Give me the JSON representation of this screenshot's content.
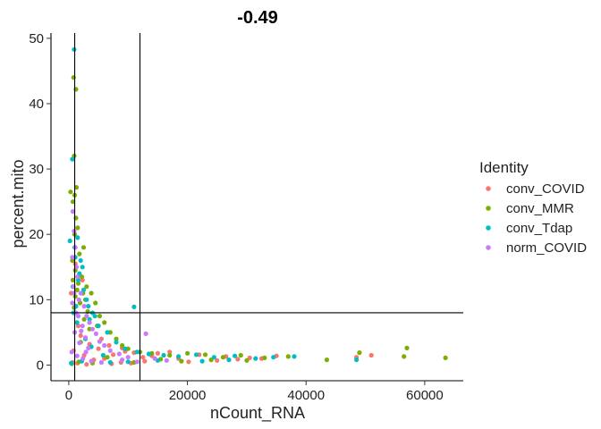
{
  "chart_data": {
    "type": "scatter",
    "title": "-0.49",
    "xlabel": "nCount_RNA",
    "ylabel": "percent.mito",
    "xlim": [
      -3000,
      66500
    ],
    "ylim": [
      -2.4,
      50.8
    ],
    "x_ticks": [
      0,
      20000,
      40000,
      60000
    ],
    "x_tick_labels": [
      "0",
      "20000",
      "40000",
      "60000"
    ],
    "y_ticks": [
      0,
      10,
      20,
      30,
      40,
      50
    ],
    "y_tick_labels": [
      "0",
      "10",
      "20",
      "30",
      "40",
      "50"
    ],
    "grid": false,
    "legend_position": "right",
    "legend_title": "Identity",
    "vlines": [
      1000,
      12000
    ],
    "hlines": [
      8
    ],
    "series": [
      {
        "name": "conv_COVID",
        "color": "#F8766D",
        "points": [
          [
            51000,
            1.5
          ],
          [
            48500,
            1.2
          ],
          [
            35000,
            1.4
          ],
          [
            30500,
            1.1
          ],
          [
            26500,
            1.3
          ],
          [
            22000,
            1.6
          ],
          [
            18500,
            1.0
          ],
          [
            15000,
            1.8
          ],
          [
            12500,
            1.2
          ],
          [
            9500,
            2.1
          ],
          [
            7500,
            1.6
          ],
          [
            6000,
            1.0
          ],
          [
            5000,
            2.5
          ],
          [
            4200,
            0.8
          ],
          [
            3500,
            3.2
          ],
          [
            2600,
            1.5
          ],
          [
            2000,
            4.5
          ],
          [
            1600,
            6.0
          ],
          [
            1200,
            9.0
          ],
          [
            800,
            2.2
          ],
          [
            600,
            0.4
          ],
          [
            400,
            11.0
          ],
          [
            12800,
            0.6
          ],
          [
            10500,
            0.3
          ],
          [
            8800,
            0.4
          ],
          [
            7200,
            0.2
          ],
          [
            3000,
            0.1
          ],
          [
            1500,
            0.3
          ],
          [
            2300,
            13.0
          ],
          [
            1100,
            15.5
          ],
          [
            20200,
            0.5
          ],
          [
            25000,
            0.7
          ],
          [
            28500,
            0.9
          ],
          [
            32500,
            1.0
          ],
          [
            17000,
            2.0
          ],
          [
            14000,
            1.4
          ],
          [
            11000,
            1.9
          ],
          [
            9000,
            2.6
          ],
          [
            6800,
            3.0
          ],
          [
            5500,
            4.0
          ]
        ]
      },
      {
        "name": "conv_MMR",
        "color": "#7CAE00",
        "points": [
          [
            800,
            44.0
          ],
          [
            1200,
            42.2
          ],
          [
            900,
            32.0
          ],
          [
            1300,
            27.2
          ],
          [
            300,
            26.5
          ],
          [
            1000,
            26.0
          ],
          [
            700,
            25.0
          ],
          [
            1500,
            21.0
          ],
          [
            2500,
            18.0
          ],
          [
            1800,
            17.0
          ],
          [
            600,
            16.0
          ],
          [
            1100,
            14.5
          ],
          [
            2200,
            13.5
          ],
          [
            3000,
            12.0
          ],
          [
            1400,
            11.5
          ],
          [
            3800,
            11.0
          ],
          [
            2800,
            10.0
          ],
          [
            4500,
            9.5
          ],
          [
            900,
            8.8
          ],
          [
            5200,
            7.5
          ],
          [
            6000,
            6.5
          ],
          [
            3500,
            5.5
          ],
          [
            7000,
            5.0
          ],
          [
            8000,
            4.0
          ],
          [
            2000,
            3.5
          ],
          [
            9000,
            3.0
          ],
          [
            10000,
            2.5
          ],
          [
            12000,
            2.0
          ],
          [
            14000,
            1.8
          ],
          [
            17000,
            1.5
          ],
          [
            20000,
            1.8
          ],
          [
            23000,
            1.6
          ],
          [
            26000,
            1.2
          ],
          [
            29000,
            1.5
          ],
          [
            33000,
            1.1
          ],
          [
            37000,
            1.3
          ],
          [
            43500,
            0.8
          ],
          [
            49000,
            1.9
          ],
          [
            57000,
            2.6
          ],
          [
            56500,
            1.3
          ],
          [
            63500,
            1.1
          ],
          [
            19000,
            0.6
          ],
          [
            24000,
            0.8
          ],
          [
            30000,
            0.7
          ],
          [
            500,
            0.2
          ],
          [
            1700,
            0.5
          ],
          [
            4000,
            0.3
          ],
          [
            6500,
            1.2
          ],
          [
            11000,
            0.4
          ],
          [
            15500,
            0.9
          ],
          [
            2600,
            7.0
          ],
          [
            1900,
            9.5
          ],
          [
            3200,
            8.2
          ],
          [
            4800,
            6.0
          ],
          [
            1000,
            20.0
          ],
          [
            1200,
            22.5
          ],
          [
            1600,
            12.5
          ],
          [
            2400,
            11.0
          ],
          [
            700,
            13.0
          ],
          [
            1100,
            10.5
          ]
        ]
      },
      {
        "name": "conv_Tdap",
        "color": "#00BFC4",
        "points": [
          [
            900,
            48.3
          ],
          [
            600,
            31.5
          ],
          [
            1500,
            19.5
          ],
          [
            200,
            19.0
          ],
          [
            1000,
            18.0
          ],
          [
            2000,
            16.0
          ],
          [
            1800,
            14.0
          ],
          [
            700,
            12.0
          ],
          [
            2500,
            11.5
          ],
          [
            3000,
            10.0
          ],
          [
            11000,
            8.9
          ],
          [
            1200,
            9.0
          ],
          [
            4000,
            8.0
          ],
          [
            3500,
            7.0
          ],
          [
            5000,
            6.0
          ],
          [
            6500,
            5.0
          ],
          [
            8000,
            3.5
          ],
          [
            9500,
            2.5
          ],
          [
            11500,
            2.0
          ],
          [
            13500,
            1.7
          ],
          [
            16000,
            1.5
          ],
          [
            18500,
            1.3
          ],
          [
            21500,
            1.6
          ],
          [
            24500,
            1.2
          ],
          [
            28000,
            1.4
          ],
          [
            31500,
            1.0
          ],
          [
            34500,
            1.2
          ],
          [
            38000,
            1.3
          ],
          [
            48500,
            0.8
          ],
          [
            22500,
            0.6
          ],
          [
            27000,
            0.8
          ],
          [
            15000,
            0.7
          ],
          [
            10000,
            0.5
          ],
          [
            7000,
            0.4
          ],
          [
            400,
            0.3
          ],
          [
            2200,
            0.6
          ],
          [
            5800,
            1.5
          ],
          [
            3800,
            2.8
          ],
          [
            2800,
            4.0
          ],
          [
            1400,
            6.5
          ],
          [
            800,
            8.0
          ],
          [
            1600,
            13.0
          ],
          [
            2300,
            15.0
          ],
          [
            1100,
            16.5
          ],
          [
            3300,
            9.0
          ],
          [
            4400,
            7.5
          ]
        ]
      },
      {
        "name": "norm_COVID",
        "color": "#C77CFF",
        "points": [
          [
            700,
            23.5
          ],
          [
            900,
            20.5
          ],
          [
            1100,
            18.0
          ],
          [
            600,
            16.5
          ],
          [
            1300,
            15.0
          ],
          [
            1500,
            13.5
          ],
          [
            800,
            12.0
          ],
          [
            2000,
            11.0
          ],
          [
            1700,
            10.0
          ],
          [
            2600,
            9.0
          ],
          [
            1200,
            8.0
          ],
          [
            3000,
            7.5
          ],
          [
            3500,
            6.5
          ],
          [
            2300,
            6.0
          ],
          [
            4000,
            5.5
          ],
          [
            4600,
            4.8
          ],
          [
            2800,
            4.2
          ],
          [
            5200,
            3.6
          ],
          [
            13000,
            4.8
          ],
          [
            6000,
            3.0
          ],
          [
            3300,
            2.6
          ],
          [
            7000,
            2.2
          ],
          [
            8500,
            1.7
          ],
          [
            10000,
            1.2
          ],
          [
            1000,
            5.0
          ],
          [
            1800,
            3.4
          ],
          [
            500,
            2.0
          ],
          [
            1400,
            1.4
          ],
          [
            2400,
            1.0
          ],
          [
            3800,
            0.6
          ],
          [
            5500,
            0.4
          ],
          [
            9000,
            0.8
          ],
          [
            11500,
            0.5
          ],
          [
            14500,
            1.0
          ],
          [
            16500,
            0.7
          ],
          [
            600,
            9.5
          ],
          [
            900,
            11.0
          ],
          [
            1600,
            7.5
          ],
          [
            2100,
            5.2
          ],
          [
            2900,
            2.0
          ]
        ]
      }
    ]
  }
}
